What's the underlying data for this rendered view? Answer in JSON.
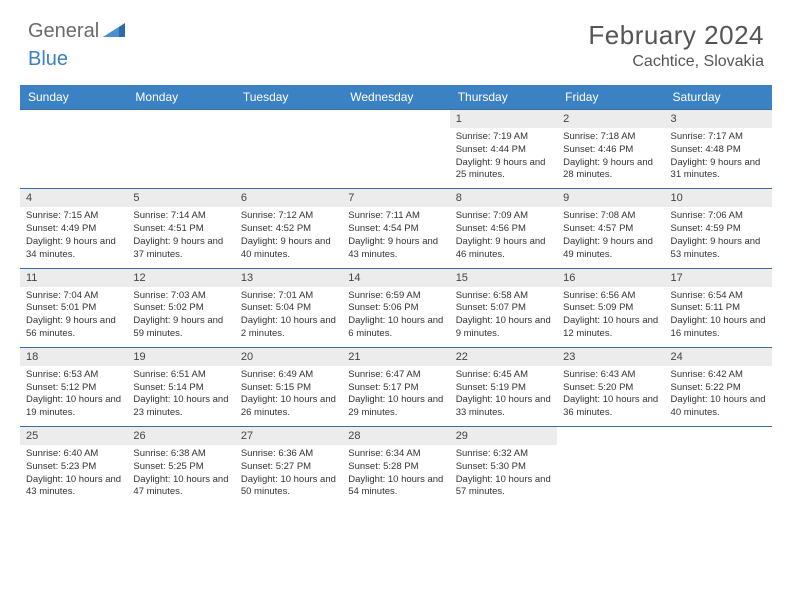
{
  "logo": {
    "part1": "General",
    "part2": "Blue"
  },
  "title": "February 2024",
  "location": "Cachtice, Slovakia",
  "colors": {
    "header_bg": "#3b82c4",
    "header_text": "#ffffff",
    "daynum_bg": "#ececec",
    "body_text": "#333333",
    "rule": "#3b6fa0"
  },
  "typography": {
    "title_fontsize": 26,
    "location_fontsize": 16,
    "dayheader_fontsize": 12,
    "daynum_fontsize": 11,
    "body_fontsize": 9.5
  },
  "day_headers": [
    "Sunday",
    "Monday",
    "Tuesday",
    "Wednesday",
    "Thursday",
    "Friday",
    "Saturday"
  ],
  "weeks": [
    [
      {
        "n": "",
        "sr": "",
        "ss": "",
        "dl": ""
      },
      {
        "n": "",
        "sr": "",
        "ss": "",
        "dl": ""
      },
      {
        "n": "",
        "sr": "",
        "ss": "",
        "dl": ""
      },
      {
        "n": "",
        "sr": "",
        "ss": "",
        "dl": ""
      },
      {
        "n": "1",
        "sr": "Sunrise: 7:19 AM",
        "ss": "Sunset: 4:44 PM",
        "dl": "Daylight: 9 hours and 25 minutes."
      },
      {
        "n": "2",
        "sr": "Sunrise: 7:18 AM",
        "ss": "Sunset: 4:46 PM",
        "dl": "Daylight: 9 hours and 28 minutes."
      },
      {
        "n": "3",
        "sr": "Sunrise: 7:17 AM",
        "ss": "Sunset: 4:48 PM",
        "dl": "Daylight: 9 hours and 31 minutes."
      }
    ],
    [
      {
        "n": "4",
        "sr": "Sunrise: 7:15 AM",
        "ss": "Sunset: 4:49 PM",
        "dl": "Daylight: 9 hours and 34 minutes."
      },
      {
        "n": "5",
        "sr": "Sunrise: 7:14 AM",
        "ss": "Sunset: 4:51 PM",
        "dl": "Daylight: 9 hours and 37 minutes."
      },
      {
        "n": "6",
        "sr": "Sunrise: 7:12 AM",
        "ss": "Sunset: 4:52 PM",
        "dl": "Daylight: 9 hours and 40 minutes."
      },
      {
        "n": "7",
        "sr": "Sunrise: 7:11 AM",
        "ss": "Sunset: 4:54 PM",
        "dl": "Daylight: 9 hours and 43 minutes."
      },
      {
        "n": "8",
        "sr": "Sunrise: 7:09 AM",
        "ss": "Sunset: 4:56 PM",
        "dl": "Daylight: 9 hours and 46 minutes."
      },
      {
        "n": "9",
        "sr": "Sunrise: 7:08 AM",
        "ss": "Sunset: 4:57 PM",
        "dl": "Daylight: 9 hours and 49 minutes."
      },
      {
        "n": "10",
        "sr": "Sunrise: 7:06 AM",
        "ss": "Sunset: 4:59 PM",
        "dl": "Daylight: 9 hours and 53 minutes."
      }
    ],
    [
      {
        "n": "11",
        "sr": "Sunrise: 7:04 AM",
        "ss": "Sunset: 5:01 PM",
        "dl": "Daylight: 9 hours and 56 minutes."
      },
      {
        "n": "12",
        "sr": "Sunrise: 7:03 AM",
        "ss": "Sunset: 5:02 PM",
        "dl": "Daylight: 9 hours and 59 minutes."
      },
      {
        "n": "13",
        "sr": "Sunrise: 7:01 AM",
        "ss": "Sunset: 5:04 PM",
        "dl": "Daylight: 10 hours and 2 minutes."
      },
      {
        "n": "14",
        "sr": "Sunrise: 6:59 AM",
        "ss": "Sunset: 5:06 PM",
        "dl": "Daylight: 10 hours and 6 minutes."
      },
      {
        "n": "15",
        "sr": "Sunrise: 6:58 AM",
        "ss": "Sunset: 5:07 PM",
        "dl": "Daylight: 10 hours and 9 minutes."
      },
      {
        "n": "16",
        "sr": "Sunrise: 6:56 AM",
        "ss": "Sunset: 5:09 PM",
        "dl": "Daylight: 10 hours and 12 minutes."
      },
      {
        "n": "17",
        "sr": "Sunrise: 6:54 AM",
        "ss": "Sunset: 5:11 PM",
        "dl": "Daylight: 10 hours and 16 minutes."
      }
    ],
    [
      {
        "n": "18",
        "sr": "Sunrise: 6:53 AM",
        "ss": "Sunset: 5:12 PM",
        "dl": "Daylight: 10 hours and 19 minutes."
      },
      {
        "n": "19",
        "sr": "Sunrise: 6:51 AM",
        "ss": "Sunset: 5:14 PM",
        "dl": "Daylight: 10 hours and 23 minutes."
      },
      {
        "n": "20",
        "sr": "Sunrise: 6:49 AM",
        "ss": "Sunset: 5:15 PM",
        "dl": "Daylight: 10 hours and 26 minutes."
      },
      {
        "n": "21",
        "sr": "Sunrise: 6:47 AM",
        "ss": "Sunset: 5:17 PM",
        "dl": "Daylight: 10 hours and 29 minutes."
      },
      {
        "n": "22",
        "sr": "Sunrise: 6:45 AM",
        "ss": "Sunset: 5:19 PM",
        "dl": "Daylight: 10 hours and 33 minutes."
      },
      {
        "n": "23",
        "sr": "Sunrise: 6:43 AM",
        "ss": "Sunset: 5:20 PM",
        "dl": "Daylight: 10 hours and 36 minutes."
      },
      {
        "n": "24",
        "sr": "Sunrise: 6:42 AM",
        "ss": "Sunset: 5:22 PM",
        "dl": "Daylight: 10 hours and 40 minutes."
      }
    ],
    [
      {
        "n": "25",
        "sr": "Sunrise: 6:40 AM",
        "ss": "Sunset: 5:23 PM",
        "dl": "Daylight: 10 hours and 43 minutes."
      },
      {
        "n": "26",
        "sr": "Sunrise: 6:38 AM",
        "ss": "Sunset: 5:25 PM",
        "dl": "Daylight: 10 hours and 47 minutes."
      },
      {
        "n": "27",
        "sr": "Sunrise: 6:36 AM",
        "ss": "Sunset: 5:27 PM",
        "dl": "Daylight: 10 hours and 50 minutes."
      },
      {
        "n": "28",
        "sr": "Sunrise: 6:34 AM",
        "ss": "Sunset: 5:28 PM",
        "dl": "Daylight: 10 hours and 54 minutes."
      },
      {
        "n": "29",
        "sr": "Sunrise: 6:32 AM",
        "ss": "Sunset: 5:30 PM",
        "dl": "Daylight: 10 hours and 57 minutes."
      },
      {
        "n": "",
        "sr": "",
        "ss": "",
        "dl": ""
      },
      {
        "n": "",
        "sr": "",
        "ss": "",
        "dl": ""
      }
    ]
  ]
}
